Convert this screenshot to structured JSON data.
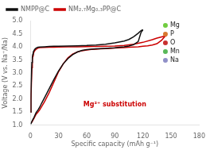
{
  "chart_data": {
    "type": "line",
    "xlabel": "Specific capacity (mAh g⁻¹)",
    "ylabel": "Voltage (V vs. Na⁺/Na)",
    "xlim": [
      0,
      180
    ],
    "ylim": [
      1.0,
      5.0
    ],
    "xticks": [
      0,
      30,
      60,
      90,
      120,
      150,
      180
    ],
    "yticks": [
      {
        "value": 1.0,
        "label": "1.0"
      },
      1.5,
      {
        "value": 2.0,
        "label": "2.0"
      },
      2.5,
      {
        "value": 3.0,
        "label": "3.0"
      },
      3.5,
      {
        "value": 4.0,
        "label": "4.0"
      },
      4.5,
      {
        "value": 5.0,
        "label": "5.0"
      }
    ],
    "grid": false,
    "legend": "upper left",
    "series": [
      {
        "name": "NMPP@C",
        "color": "#111111",
        "x": [
          0,
          0.5,
          1,
          1.5,
          2,
          2.5,
          3,
          4,
          5,
          6,
          7,
          8,
          10,
          15,
          20,
          25,
          30,
          40,
          50,
          60,
          70,
          80,
          90,
          100,
          105,
          110,
          115,
          118,
          120
        ],
        "values": [
          1.5,
          2.2,
          2.9,
          3.4,
          3.6,
          3.72,
          3.8,
          3.87,
          3.92,
          3.95,
          3.97,
          3.98,
          3.99,
          4.0,
          4.01,
          4.02,
          4.025,
          4.03,
          4.04,
          4.05,
          4.07,
          4.1,
          4.15,
          4.22,
          4.28,
          4.38,
          4.52,
          4.62,
          4.65
        ]
      },
      {
        "name": "NMPP@C",
        "color": "#111111",
        "x": [
          120,
          118,
          115,
          110,
          105,
          100,
          95,
          90,
          85,
          80,
          75,
          70,
          65,
          60,
          55,
          50,
          45,
          40,
          35,
          30,
          25,
          20,
          15,
          12,
          10,
          8,
          6,
          5,
          4,
          3,
          2,
          1,
          0.5
        ],
        "values": [
          4.65,
          4.55,
          4.2,
          4.08,
          4.03,
          4.0,
          3.98,
          3.96,
          3.95,
          3.94,
          3.93,
          3.92,
          3.91,
          3.89,
          3.86,
          3.8,
          3.7,
          3.55,
          3.35,
          3.08,
          2.75,
          2.4,
          2.05,
          1.85,
          1.7,
          1.58,
          1.48,
          1.4,
          1.32,
          1.25,
          1.18,
          1.1,
          1.05
        ]
      },
      {
        "name": "NM₂.₇Mg₀.₃PP@C",
        "color": "#cc0000",
        "x": [
          0,
          0.5,
          1,
          1.5,
          2,
          2.5,
          3,
          4,
          5,
          6,
          7,
          8,
          10,
          15,
          20,
          25,
          30,
          40,
          50,
          60,
          70,
          80,
          90,
          100,
          110,
          120,
          130,
          135,
          140,
          143,
          145
        ],
        "values": [
          1.5,
          2.0,
          2.6,
          3.2,
          3.5,
          3.65,
          3.73,
          3.82,
          3.87,
          3.9,
          3.93,
          3.95,
          3.97,
          3.975,
          3.98,
          3.985,
          3.99,
          3.995,
          4.0,
          4.005,
          4.01,
          4.02,
          4.03,
          4.05,
          4.1,
          4.17,
          4.27,
          4.33,
          4.38,
          4.41,
          4.43
        ]
      },
      {
        "name": "NM₂.₇Mg₀.₃PP@C",
        "color": "#cc0000",
        "x": [
          145,
          143,
          140,
          135,
          130,
          125,
          120,
          115,
          110,
          105,
          100,
          95,
          90,
          85,
          80,
          75,
          70,
          65,
          60,
          55,
          50,
          45,
          40,
          35,
          30,
          25,
          20,
          15,
          12,
          10,
          8,
          6,
          5,
          4,
          3,
          2,
          1
        ],
        "values": [
          4.43,
          4.38,
          4.25,
          4.12,
          4.07,
          4.04,
          4.02,
          4.0,
          3.99,
          3.98,
          3.97,
          3.96,
          3.95,
          3.94,
          3.93,
          3.92,
          3.91,
          3.9,
          3.88,
          3.85,
          3.8,
          3.72,
          3.58,
          3.35,
          3.05,
          2.65,
          2.25,
          1.9,
          1.72,
          1.6,
          1.5,
          1.42,
          1.35,
          1.28,
          1.22,
          1.15,
          1.1
        ]
      }
    ],
    "annotations": [
      {
        "text": "Mg²⁺ substitution",
        "color": "#cc0000"
      },
      {
        "text": "Na",
        "marker": "circle",
        "color": "#9090c8"
      },
      {
        "text": "Mn",
        "marker": "circle",
        "color": "#58b858"
      },
      {
        "text": "O",
        "marker": "circle",
        "color": "#c83030"
      },
      {
        "text": "P",
        "marker": "circle",
        "color": "#d87830"
      },
      {
        "text": "Mg",
        "marker": "circle",
        "color": "#70cc40"
      }
    ]
  }
}
